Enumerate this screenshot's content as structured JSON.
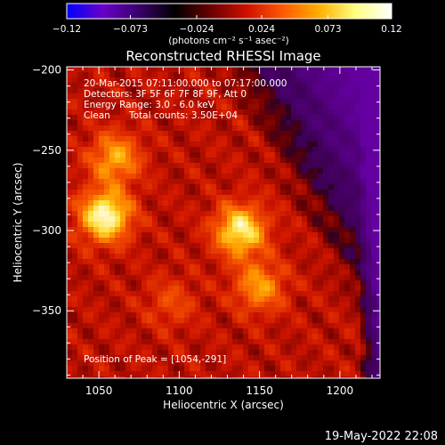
{
  "chart_data": {
    "type": "heatmap",
    "title": "Reconstructed RHESSI Image",
    "xlabel": "Heliocentric X (arcsec)",
    "ylabel": "Heliocentric Y (arcsec)",
    "xlim": [
      1030,
      1225
    ],
    "ylim": [
      -392,
      -198
    ],
    "x_ticks": [
      {
        "value": 1050,
        "label": "1050"
      },
      {
        "value": 1100,
        "label": "1100"
      },
      {
        "value": 1150,
        "label": "1150"
      },
      {
        "value": 1200,
        "label": "1200"
      }
    ],
    "y_ticks": [
      {
        "value": -200,
        "label": "−200"
      },
      {
        "value": -250,
        "label": "−250"
      },
      {
        "value": -300,
        "label": "−300"
      },
      {
        "value": -350,
        "label": "−350"
      }
    ],
    "colorbar": {
      "min": -0.12,
      "max": 0.12,
      "ticks": [
        {
          "value": -0.12,
          "label": "−0.12"
        },
        {
          "value": -0.073,
          "label": "−0.073"
        },
        {
          "value": -0.024,
          "label": "−0.024"
        },
        {
          "value": 0.024,
          "label": "0.024"
        },
        {
          "value": 0.073,
          "label": "0.073"
        },
        {
          "value": 0.12,
          "label": "0.12"
        }
      ],
      "unit_label": "(photons cm⁻² s⁻¹ asec⁻²)",
      "colors": [
        "#0000ff",
        "#6a00c8",
        "#3a006a",
        "#000000",
        "#6a0000",
        "#d01000",
        "#ff5a00",
        "#ffb000",
        "#ffff80",
        "#ffffff"
      ]
    },
    "annotations": {
      "time_range": "20-Mar-2015 07:11:00.000 to 07:17:00.000",
      "detectors": "Detectors: 3F 5F 6F 7F 8F 9F, Att 0",
      "energy": "Energy Range: 3.0 - 6.0 keV",
      "clean_label": "Clean",
      "total_counts": "Total counts: 3.50E+04",
      "peak": "Position of Peak = [1054,-291]"
    },
    "sources": [
      {
        "x": 1054,
        "y": -291,
        "peak": 0.12
      },
      {
        "x": 1138,
        "y": -300,
        "peak": 0.11
      },
      {
        "x": 1060,
        "y": -255,
        "peak": 0.085
      },
      {
        "x": 1150,
        "y": -335,
        "peak": 0.08
      },
      {
        "x": 1095,
        "y": -345,
        "peak": 0.055
      }
    ],
    "footer_date": "19-May-2022 22:08"
  }
}
